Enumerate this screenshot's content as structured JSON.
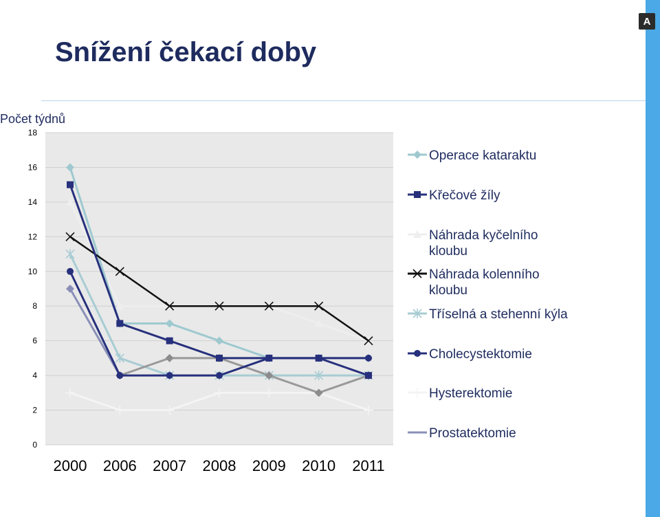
{
  "slide": {
    "title": "Snížení čekací doby",
    "logo_text": "A"
  },
  "chart_data": {
    "type": "line",
    "title": "",
    "ylabel": "Počet týdnů",
    "xlabel": "",
    "categories": [
      "2000",
      "2006",
      "2007",
      "2008",
      "2009",
      "2010",
      "2011"
    ],
    "ylim": [
      0,
      18
    ],
    "yticks": [
      0,
      2,
      4,
      6,
      8,
      10,
      12,
      14,
      16,
      18
    ],
    "grid": "horizontal",
    "legend_position": "right",
    "series": [
      {
        "name": "Operace kataraktu",
        "values": [
          16,
          7,
          7,
          6,
          5,
          5,
          5
        ],
        "color": "#9ec9cf",
        "marker": "diamond"
      },
      {
        "name": "Křečové žíly",
        "values": [
          15,
          7,
          6,
          5,
          5,
          5,
          4
        ],
        "color": "#27307c",
        "marker": "square"
      },
      {
        "name": "Náhrada kyčelního kloubu",
        "values": [
          14,
          8,
          8,
          8,
          8,
          7,
          6
        ],
        "color": "#eeeeee",
        "marker": "triangle"
      },
      {
        "name": "Náhrada kolenního kloubu",
        "values": [
          12,
          10,
          8,
          8,
          8,
          8,
          6
        ],
        "color": "#111111",
        "marker": "x"
      },
      {
        "name": "Tříselná a stehenní kýla",
        "values": [
          11,
          5,
          4,
          4,
          4,
          4,
          4
        ],
        "color": "#a8ccd3",
        "marker": "star"
      },
      {
        "name": "Cholecystektomie",
        "values": [
          10,
          4,
          4,
          4,
          5,
          5,
          5
        ],
        "color": "#27307c",
        "marker": "circle"
      },
      {
        "name": "Hysterektomie",
        "values": [
          3,
          2,
          2,
          3,
          3,
          3,
          2
        ],
        "color": "#f4f4f4",
        "marker": "plus"
      },
      {
        "name": "Prostatektomie",
        "values": [
          9,
          4,
          5,
          5,
          4,
          3,
          4
        ],
        "color": "#8a8fb8",
        "marker": "diamond"
      }
    ],
    "extra_series_colors": {
      "prostate_late": "#999999"
    }
  }
}
